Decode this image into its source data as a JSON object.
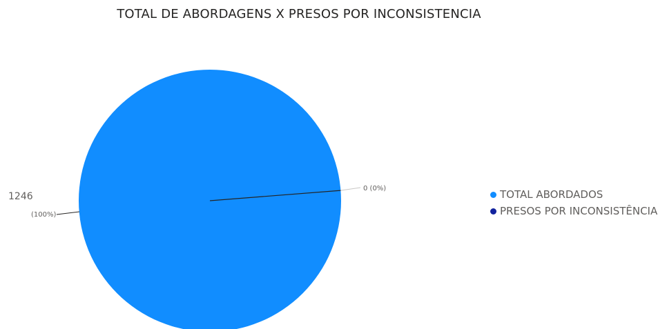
{
  "chart_data": {
    "type": "pie",
    "title": "TOTAL DE ABORDAGENS X PRESOS POR INCONSISTENCIA",
    "slices": [
      {
        "name": "TOTAL ABORDADOS",
        "value": 1246,
        "value_label": "1246",
        "percent_label": "(100%)",
        "color": "#118dff"
      },
      {
        "name": "PRESOS POR INCONSISTÊNCIA",
        "value": 0,
        "value_label": "0 (0%)",
        "percent_label": "",
        "color": "#12239e"
      }
    ],
    "legend_position": "right"
  }
}
